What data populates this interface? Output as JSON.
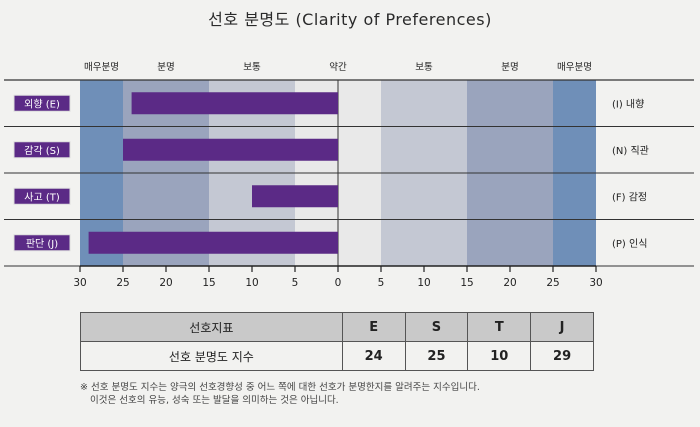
{
  "title": "선호 분명도 (Clarity of Preferences)",
  "chart_data": {
    "type": "bar",
    "title": "선호 분명도 (Clarity of Preferences)",
    "xlim": [
      -30,
      30
    ],
    "x_ticks": [
      "30",
      "25",
      "20",
      "15",
      "10",
      "5",
      "0",
      "5",
      "10",
      "15",
      "20",
      "25",
      "30"
    ],
    "zones": [
      {
        "label": "매우분명",
        "range": [
          -30,
          -25
        ],
        "color": "#6f8fb8"
      },
      {
        "label": "분명",
        "range": [
          -25,
          -15
        ],
        "color": "#9aa4bd"
      },
      {
        "label": "보통",
        "range": [
          -15,
          -5
        ],
        "color": "#c4c8d3"
      },
      {
        "label": "약간",
        "range": [
          -5,
          5
        ],
        "color": "#e9e9e9"
      },
      {
        "label": "보통",
        "range": [
          5,
          15
        ],
        "color": "#c4c8d3"
      },
      {
        "label": "분명",
        "range": [
          15,
          25
        ],
        "color": "#9aa4bd"
      },
      {
        "label": "매우분명",
        "range": [
          25,
          30
        ],
        "color": "#6f8fb8"
      }
    ],
    "rows": [
      {
        "left": "외향 (E)",
        "right": "(I) 내향",
        "value": -24
      },
      {
        "left": "감각 (S)",
        "right": "(N) 직관",
        "value": -25
      },
      {
        "left": "사고 (T)",
        "right": "(F) 감정",
        "value": -10
      },
      {
        "left": "판단 (J)",
        "right": "(P) 인식",
        "value": -29
      }
    ],
    "bar_color": "#5b2a86"
  },
  "table": {
    "header_label": "선호지표",
    "columns": [
      "E",
      "S",
      "T",
      "J"
    ],
    "row_label": "선호 분명도 지수",
    "values": [
      "24",
      "25",
      "10",
      "29"
    ]
  },
  "footnote": {
    "line1": "※ 선호 분명도 지수는 양극의 선호경향성 중 어느 쪽에 대한 선호가 분명한지를 알려주는 지수입니다.",
    "line2": "이것은 선호의 유능, 성숙 또는 발달을 의미하는 것은 아닙니다."
  }
}
